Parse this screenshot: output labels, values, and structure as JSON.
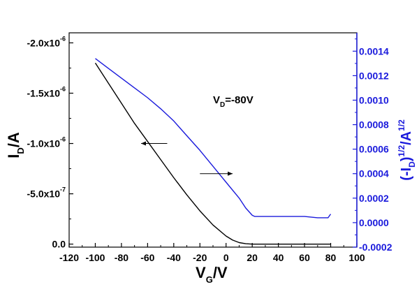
{
  "chart_data": {
    "type": "line",
    "x_axis": {
      "label_main": "V",
      "label_sub": "G",
      "label_suffix": "/V",
      "range": [
        -120,
        100
      ],
      "ticks": [
        -120,
        -100,
        -80,
        -60,
        -40,
        -20,
        0,
        20,
        40,
        60,
        80,
        100
      ],
      "tick_labels": [
        "-120",
        "-100",
        "-80",
        "-60",
        "-40",
        "-20",
        "0",
        "20",
        "40",
        "60",
        "80",
        "100"
      ]
    },
    "y_left": {
      "label_main": "I",
      "label_sub": "D",
      "label_suffix": "/A",
      "range": [
        3e-08,
        -2.1e-06
      ],
      "inverted": true,
      "ticks": [
        0,
        -5e-07,
        -1e-06,
        -1.5e-06,
        -2e-06
      ],
      "tick_labels": [
        {
          "base": "0.0",
          "exp": ""
        },
        {
          "base": "-5.0x10",
          "exp": "-7"
        },
        {
          "base": "-1.0x10",
          "exp": "-6"
        },
        {
          "base": "-1.5x10",
          "exp": "-6"
        },
        {
          "base": "-2.0x10",
          "exp": "-6"
        }
      ],
      "color": "#000000"
    },
    "y_right": {
      "label_parts": [
        "(-I",
        "D",
        ")",
        "1/2",
        "/A",
        "1/2"
      ],
      "range": [
        -0.0002,
        0.00155
      ],
      "ticks": [
        -0.0002,
        0.0,
        0.0002,
        0.0004,
        0.0006,
        0.0008,
        0.001,
        0.0012,
        0.0014
      ],
      "tick_labels": [
        "-0.0002",
        "0.0000",
        "0.0002",
        "0.0004",
        "0.0006",
        "0.0008",
        "0.0010",
        "0.0012",
        "0.0014"
      ],
      "color": "#1a1adc"
    },
    "annotation": {
      "main": "V",
      "sub": "D",
      "suffix": "=-80V"
    },
    "series": [
      {
        "axis": "left",
        "color": "#000000",
        "x": [
          -100,
          -90,
          -80,
          -70,
          -60,
          -50,
          -40,
          -30,
          -20,
          -10,
          0,
          5,
          10,
          15,
          20,
          30,
          40,
          60,
          80
        ],
        "y": [
          -1.8e-06,
          -1.6e-06,
          -1.4e-06,
          -1.2e-06,
          -1.02e-06,
          -8.4e-07,
          -6.6e-07,
          -4.9e-07,
          -3.3e-07,
          -1.9e-07,
          -8e-08,
          -4e-08,
          -1.5e-08,
          -4e-09,
          0,
          0,
          0,
          0,
          0
        ]
      },
      {
        "axis": "right",
        "color": "#1a1adc",
        "x": [
          -100,
          -90,
          -80,
          -70,
          -60,
          -50,
          -40,
          -30,
          -20,
          -10,
          0,
          10,
          15,
          20,
          22,
          30,
          40,
          50,
          60,
          70,
          78,
          80
        ],
        "y": [
          0.00134,
          0.00126,
          0.00118,
          0.0011,
          0.00102,
          0.00093,
          0.00083,
          0.00071,
          0.00059,
          0.00046,
          0.00033,
          0.0002,
          0.00012,
          6e-05,
          5e-05,
          5e-05,
          5e-05,
          5e-05,
          5e-05,
          4e-05,
          4e-05,
          7e-05
        ]
      }
    ],
    "arrows": [
      {
        "direction": "left",
        "x_from": -45,
        "x_to": -65,
        "axis": "left",
        "y": -1e-06
      },
      {
        "direction": "right",
        "x_from": -20,
        "x_to": 5,
        "axis": "left",
        "y": -7e-07
      }
    ]
  }
}
